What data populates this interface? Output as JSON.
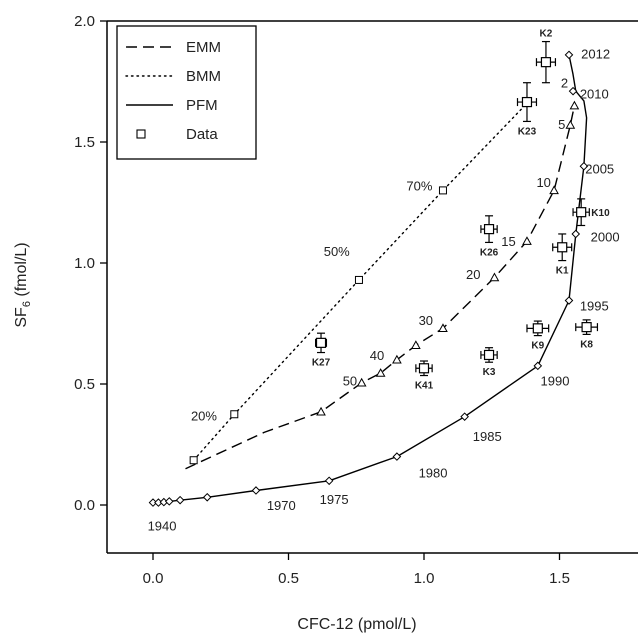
{
  "chart_data": {
    "type": "line",
    "xlabel": "CFC-12 (pmol/L)",
    "ylabel_main": "SF",
    "ylabel_sub": "6",
    "ylabel_unit": " (fmol/L)",
    "xlim": [
      -0.12,
      1.82
    ],
    "ylim": [
      -0.4,
      2.0
    ],
    "x_ticks": [
      0.0,
      0.5,
      1.0,
      1.5
    ],
    "x_tick_labels": [
      "0.0",
      "0.5",
      "1.0",
      "1.5"
    ],
    "y_ticks": [
      0.0,
      0.5,
      1.0,
      1.5,
      2.0
    ],
    "y_tick_labels": [
      "0.0",
      "0.5",
      "1.0",
      "1.5",
      "2.0"
    ],
    "grid": false,
    "legend_position": "top-left",
    "legend": [
      {
        "label": "EMM",
        "style": "dashed"
      },
      {
        "label": "BMM",
        "style": "dotted"
      },
      {
        "label": "PFM",
        "style": "solid"
      },
      {
        "label": "Data",
        "style": "square-marker"
      }
    ],
    "series": [
      {
        "name": "EMM",
        "style": "dashed",
        "marker": "triangle",
        "x": [
          0.12,
          0.41,
          0.62,
          0.77,
          0.84,
          0.9,
          0.97,
          1.07,
          1.26,
          1.38,
          1.48,
          1.54,
          1.555
        ],
        "y": [
          0.15,
          0.3,
          0.385,
          0.505,
          0.545,
          0.6,
          0.66,
          0.73,
          0.94,
          1.09,
          1.3,
          1.57,
          1.65
        ],
        "markers_x": [
          0.62,
          0.77,
          0.84,
          0.9,
          0.97,
          1.07,
          1.26,
          1.38,
          1.48,
          1.54,
          1.555
        ],
        "markers_y": [
          0.385,
          0.505,
          0.545,
          0.6,
          0.66,
          0.73,
          0.94,
          1.09,
          1.3,
          1.57,
          1.65
        ]
      },
      {
        "name": "BMM",
        "style": "dotted",
        "marker": "square",
        "x": [
          0.15,
          0.3,
          0.76,
          1.07,
          1.38
        ],
        "y": [
          0.185,
          0.375,
          0.93,
          1.3,
          1.66
        ],
        "markers_x": [
          0.15,
          0.3,
          0.76,
          1.07
        ],
        "markers_y": [
          0.185,
          0.375,
          0.93,
          1.3
        ]
      },
      {
        "name": "PFM",
        "style": "solid",
        "marker": "diamond",
        "x": [
          0.0,
          0.02,
          0.04,
          0.06,
          0.1,
          0.2,
          0.38,
          0.65,
          0.9,
          1.15,
          1.42,
          1.535,
          1.56,
          1.59,
          1.6,
          1.59,
          1.56,
          1.55,
          1.535
        ],
        "y": [
          0.01,
          0.01,
          0.012,
          0.015,
          0.02,
          0.032,
          0.06,
          0.1,
          0.2,
          0.365,
          0.575,
          0.845,
          1.12,
          1.4,
          1.6,
          1.67,
          1.71,
          1.78,
          1.86
        ],
        "markers_x": [
          0.0,
          0.02,
          0.04,
          0.06,
          0.1,
          0.2,
          0.38,
          0.65,
          0.9,
          1.15,
          1.42,
          1.535,
          1.56,
          1.59,
          1.55,
          1.535
        ],
        "markers_y": [
          0.01,
          0.01,
          0.012,
          0.015,
          0.02,
          0.032,
          0.06,
          0.1,
          0.2,
          0.365,
          0.575,
          0.845,
          1.12,
          1.4,
          1.71,
          1.86
        ]
      }
    ],
    "data_points": [
      {
        "label": "K2",
        "x": 1.45,
        "y": 1.83,
        "xerr": 0.035,
        "yerr": 0.085
      },
      {
        "label": "K23",
        "x": 1.38,
        "y": 1.665,
        "xerr": 0.035,
        "yerr": 0.08
      },
      {
        "label": "K10",
        "x": 1.58,
        "y": 1.21,
        "xerr": 0.03,
        "yerr": 0.055
      },
      {
        "label": "K26",
        "x": 1.24,
        "y": 1.14,
        "xerr": 0.03,
        "yerr": 0.055
      },
      {
        "label": "K1",
        "x": 1.51,
        "y": 1.065,
        "xerr": 0.035,
        "yerr": 0.055
      },
      {
        "label": "K9",
        "x": 1.42,
        "y": 0.73,
        "xerr": 0.04,
        "yerr": 0.03
      },
      {
        "label": "K8",
        "x": 1.6,
        "y": 0.735,
        "xerr": 0.04,
        "yerr": 0.03
      },
      {
        "label": "K27",
        "x": 0.62,
        "y": 0.67,
        "xerr": 0.02,
        "yerr": 0.04
      },
      {
        "label": "K3",
        "x": 1.24,
        "y": 0.62,
        "xerr": 0.03,
        "yerr": 0.03
      },
      {
        "label": "K41",
        "x": 1.0,
        "y": 0.565,
        "xerr": 0.03,
        "yerr": 0.03
      }
    ],
    "annotations": [
      {
        "text": "1940",
        "x": -0.02,
        "y": -0.085
      },
      {
        "text": "1970",
        "x": 0.42,
        "y": 0.0
      },
      {
        "text": "1975",
        "x": 0.615,
        "y": 0.025
      },
      {
        "text": "1980",
        "x": 0.98,
        "y": 0.135
      },
      {
        "text": "1985",
        "x": 1.18,
        "y": 0.285
      },
      {
        "text": "1990",
        "x": 1.43,
        "y": 0.515
      },
      {
        "text": "1995",
        "x": 1.575,
        "y": 0.825
      },
      {
        "text": "2000",
        "x": 1.615,
        "y": 1.11
      },
      {
        "text": "2005",
        "x": 1.595,
        "y": 1.39
      },
      {
        "text": "2010",
        "x": 1.575,
        "y": 1.7
      },
      {
        "text": "2012",
        "x": 1.58,
        "y": 1.865
      },
      {
        "text": "2",
        "x": 1.505,
        "y": 1.745
      },
      {
        "text": "5",
        "x": 1.495,
        "y": 1.575
      },
      {
        "text": "10",
        "x": 1.415,
        "y": 1.335
      },
      {
        "text": "15",
        "x": 1.285,
        "y": 1.09
      },
      {
        "text": "20",
        "x": 1.155,
        "y": 0.955
      },
      {
        "text": "30",
        "x": 0.98,
        "y": 0.765
      },
      {
        "text": "40",
        "x": 0.8,
        "y": 0.62
      },
      {
        "text": "50",
        "x": 0.7,
        "y": 0.515
      },
      {
        "text": "70%",
        "x": 0.935,
        "y": 1.32
      },
      {
        "text": "50%",
        "x": 0.63,
        "y": 1.05
      },
      {
        "text": "20%",
        "x": 0.14,
        "y": 0.37
      }
    ]
  }
}
